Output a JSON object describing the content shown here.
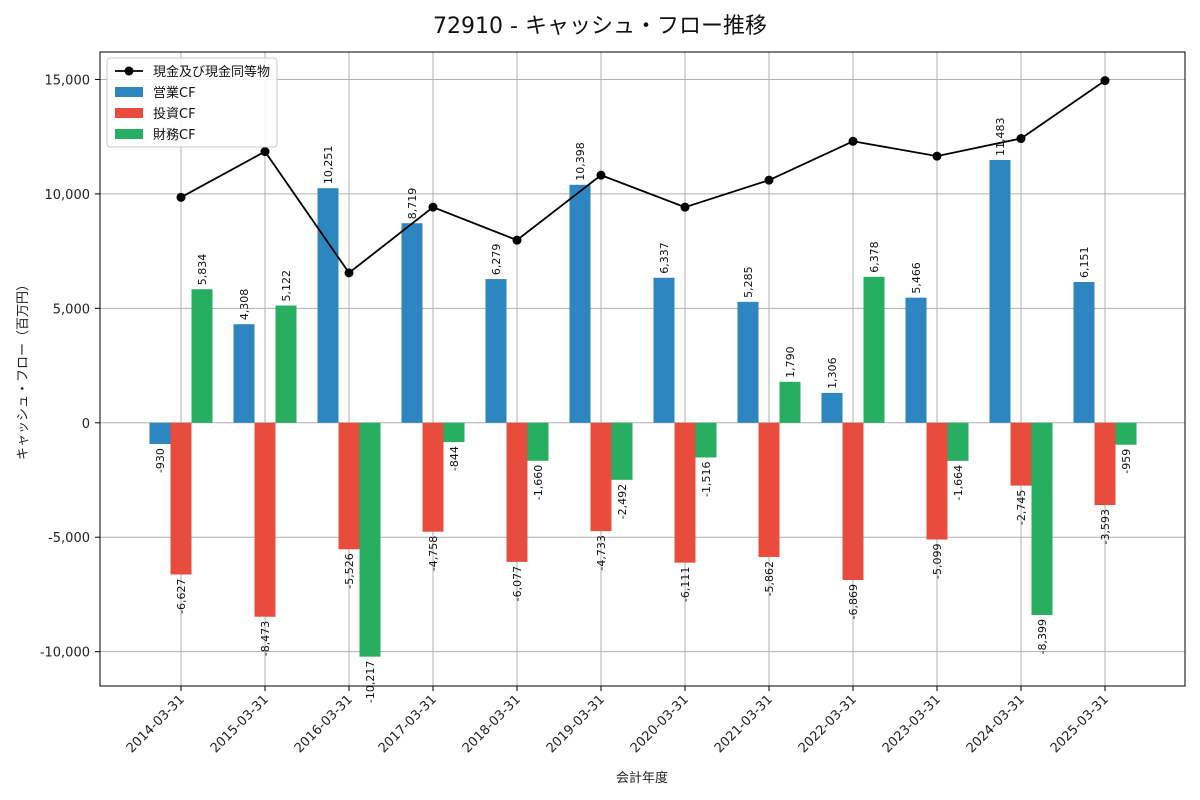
{
  "chart_data": {
    "type": "bar",
    "title": "72910 - キャッシュ・フロー推移",
    "xlabel": "会計年度",
    "ylabel": "キャッシュ・フロー（百万円）",
    "ylim": [
      -11500,
      16200
    ],
    "yticks": [
      15000,
      10000,
      5000,
      0,
      -5000,
      -10000
    ],
    "ytick_labels": [
      "15,000",
      "10,000",
      "5,000",
      "0",
      "-5,000",
      "-10,000"
    ],
    "grid": true,
    "legend_position": "top-left",
    "categories": [
      "2014-03-31",
      "2015-03-31",
      "2016-03-31",
      "2017-03-31",
      "2018-03-31",
      "2019-03-31",
      "2020-03-31",
      "2021-03-31",
      "2022-03-31",
      "2023-03-31",
      "2024-03-31",
      "2025-03-31"
    ],
    "series": [
      {
        "name": "営業CF",
        "kind": "bar",
        "color": "#2e86c1",
        "values": [
          -930,
          4308,
          10251,
          8719,
          6279,
          10398,
          6337,
          5285,
          1306,
          5466,
          11483,
          6151
        ],
        "labels": [
          "-930",
          "4,308",
          "10,251",
          "8,719",
          "6,279",
          "10,398",
          "6,337",
          "5,285",
          "1,306",
          "5,466",
          "11,483",
          "6,151"
        ]
      },
      {
        "name": "投資CF",
        "kind": "bar",
        "color": "#e74c3c",
        "values": [
          -6627,
          -8473,
          -5526,
          -4758,
          -6077,
          -4733,
          -6111,
          -5862,
          -6869,
          -5099,
          -2745,
          -3593
        ],
        "labels": [
          "-6,627",
          "-8,473",
          "-5,526",
          "-4,758",
          "-6,077",
          "-4,733",
          "-6,111",
          "-5,862",
          "-6,869",
          "-5,099",
          "-2,745",
          "-3,593"
        ]
      },
      {
        "name": "財務CF",
        "kind": "bar",
        "color": "#27ae60",
        "values": [
          5834,
          5122,
          -10217,
          -844,
          -1660,
          -2492,
          -1516,
          1790,
          6378,
          -1664,
          -8399,
          -959
        ],
        "labels": [
          "5,834",
          "5,122",
          "-10,217",
          "-844",
          "-1,660",
          "-2,492",
          "-1,516",
          "1,790",
          "6,378",
          "-1,664",
          "-8,399",
          "-959"
        ]
      },
      {
        "name": "現金及び現金同等物",
        "kind": "line",
        "color": "#000000",
        "values": [
          9850,
          11850,
          6550,
          9420,
          7980,
          10820,
          9420,
          10600,
          12300,
          11650,
          12420,
          14950
        ]
      }
    ]
  }
}
